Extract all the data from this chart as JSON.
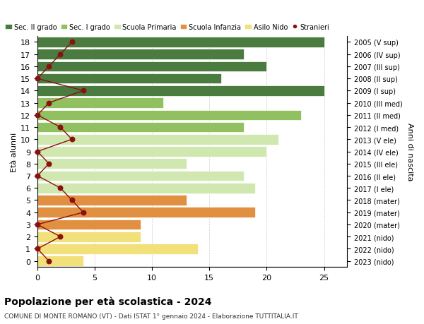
{
  "ages": [
    0,
    1,
    2,
    3,
    4,
    5,
    6,
    7,
    8,
    9,
    10,
    11,
    12,
    13,
    14,
    15,
    16,
    17,
    18
  ],
  "years": [
    "2023 (nido)",
    "2022 (nido)",
    "2021 (nido)",
    "2020 (mater)",
    "2019 (mater)",
    "2018 (mater)",
    "2017 (I ele)",
    "2016 (II ele)",
    "2015 (III ele)",
    "2014 (IV ele)",
    "2013 (V ele)",
    "2012 (I med)",
    "2011 (II med)",
    "2010 (III med)",
    "2009 (I sup)",
    "2008 (II sup)",
    "2007 (III sup)",
    "2006 (IV sup)",
    "2005 (V sup)"
  ],
  "bar_values": [
    4,
    14,
    9,
    9,
    19,
    13,
    19,
    18,
    13,
    20,
    21,
    18,
    23,
    11,
    25,
    16,
    20,
    18,
    25
  ],
  "bar_colors": [
    "#f2e07a",
    "#f2e07a",
    "#f2e07a",
    "#e09040",
    "#e09040",
    "#e09040",
    "#d0e8b0",
    "#d0e8b0",
    "#d0e8b0",
    "#d0e8b0",
    "#d0e8b0",
    "#90c060",
    "#90c060",
    "#90c060",
    "#4a7c3f",
    "#4a7c3f",
    "#4a7c3f",
    "#4a7c3f",
    "#4a7c3f"
  ],
  "stranieri_x": [
    1,
    0,
    2,
    0,
    4,
    3,
    2,
    0,
    1,
    0,
    3,
    2,
    0,
    1,
    4,
    0,
    1,
    2,
    3
  ],
  "legend_labels": [
    "Sec. II grado",
    "Sec. I grado",
    "Scuola Primaria",
    "Scuola Infanzia",
    "Asilo Nido",
    "Stranieri"
  ],
  "legend_colors": [
    "#4a7c3f",
    "#90c060",
    "#d0e8b0",
    "#e09040",
    "#f2e07a",
    "#8b1010"
  ],
  "title": "Popolazione per età scolastica - 2024",
  "subtitle": "COMUNE DI MONTE ROMANO (VT) - Dati ISTAT 1° gennaio 2024 - Elaborazione TUTTITALIA.IT",
  "ylabel_left": "Età alunni",
  "ylabel_right": "Anni di nascita",
  "xlim": [
    0,
    27
  ],
  "xticks": [
    0,
    5,
    10,
    15,
    20,
    25
  ],
  "background_color": "#ffffff",
  "grid_color": "#cccccc"
}
